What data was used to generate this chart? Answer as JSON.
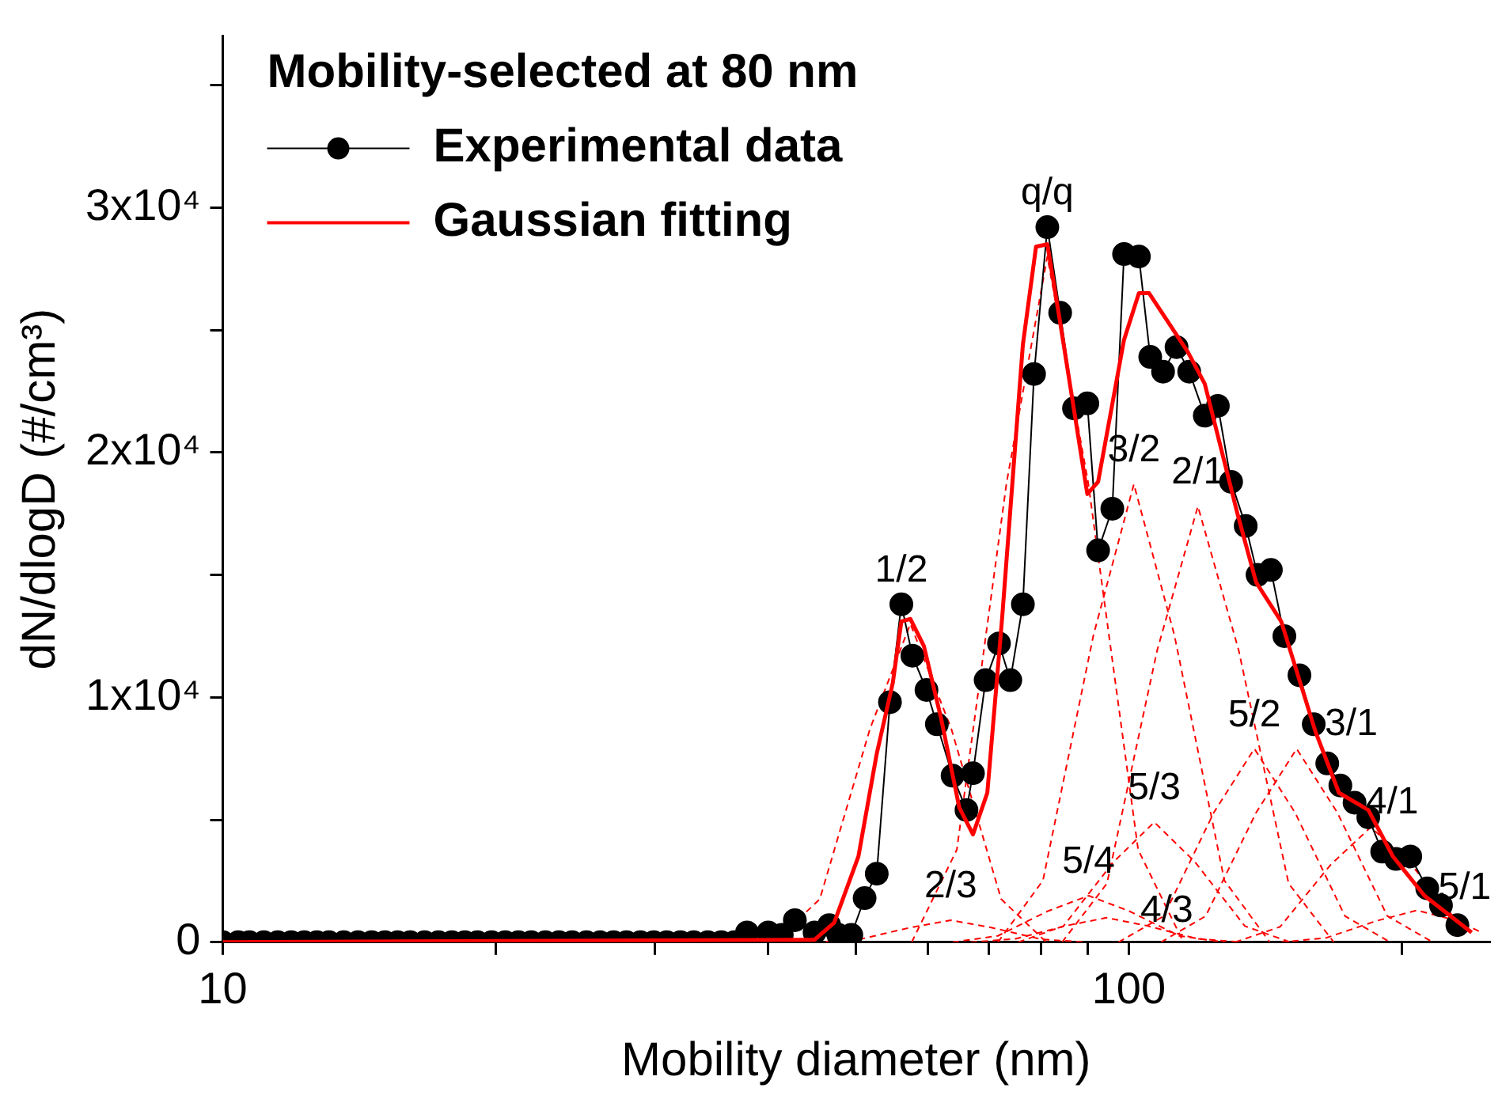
{
  "chart_data": {
    "type": "line",
    "xlabel": "Mobility diameter (nm)",
    "ylabel": "dN/dlogD (#/cm³)",
    "legend_title": "Mobility-selected at 80 nm",
    "legend": "top left",
    "grid": false,
    "log": "x",
    "xlim": [
      10,
      250
    ],
    "xticks": [
      10,
      {
        "value": 20,
        "label": null
      },
      {
        "value": 30,
        "label": null
      },
      {
        "value": 40,
        "label": null
      },
      {
        "value": 50,
        "label": null
      },
      {
        "value": 60,
        "label": null
      },
      {
        "value": 70,
        "label": null
      },
      {
        "value": 80,
        "label": null
      },
      {
        "value": 90,
        "label": null
      },
      100,
      {
        "value": 200,
        "label": null
      }
    ],
    "ylim": [
      0,
      37000
    ],
    "yticks": [
      0,
      {
        "value": 5000,
        "label": null
      },
      {
        "value": 10000,
        "label": "1x10⁴"
      },
      {
        "value": 15000,
        "label": null
      },
      {
        "value": 20000,
        "label": "2x10⁴"
      },
      {
        "value": 25000,
        "label": null
      },
      {
        "value": 30000,
        "label": "3x10⁴"
      },
      {
        "value": 35000,
        "label": null
      }
    ],
    "series": [
      {
        "name": "Experimental data",
        "type": "line",
        "color": "#000000",
        "marker": "circle",
        "line_style": "solid",
        "x": [
          10.0,
          10.4,
          10.7,
          11.1,
          11.5,
          11.9,
          12.3,
          12.7,
          13.1,
          13.6,
          14.1,
          14.6,
          15.1,
          15.6,
          16.1,
          16.7,
          17.3,
          17.9,
          18.5,
          19.1,
          19.8,
          20.5,
          21.2,
          21.9,
          22.7,
          23.5,
          24.3,
          25.2,
          26.1,
          27.0,
          27.9,
          28.9,
          29.9,
          30.9,
          32.0,
          33.1,
          34.3,
          35.5,
          36.7,
          37.9,
          40.0,
          41.4,
          42.8,
          45.0,
          46.7,
          47.8,
          49.4,
          51.1,
          52.7,
          54.5,
          56.1,
          57.7,
          59.8,
          61.4,
          63.9,
          66.2,
          67.3,
          69.5,
          71.9,
          74.0,
          76.4,
          78.6,
          81.3,
          84.0,
          87.0,
          90.0,
          92.5,
          95.9,
          98.8,
          102.6,
          105.6,
          109.1,
          112.9,
          116.6,
          121.3,
          125.4,
          129.7,
          134.6,
          138.7,
          143.5,
          148.5,
          154.3,
          160.0,
          165.6,
          171.2,
          177.5,
          183.8,
          190.4,
          197.2,
          204.5,
          213.5,
          221.1,
          230.5
        ],
        "values": [
          0,
          0,
          0,
          0,
          0,
          0,
          0,
          0,
          0,
          0,
          0,
          0,
          0,
          0,
          0,
          0,
          0,
          0,
          0,
          0,
          0,
          0,
          0,
          0,
          0,
          0,
          0,
          0,
          0,
          0,
          0,
          0,
          0,
          0,
          0,
          0,
          0,
          0,
          0,
          400,
          400,
          300,
          900,
          400,
          700,
          300,
          300,
          1800,
          2800,
          9800,
          13800,
          11700,
          10300,
          8900,
          6800,
          5400,
          6900,
          10700,
          12200,
          10700,
          13800,
          23200,
          29200,
          25700,
          21800,
          22000,
          16000,
          17700,
          28100,
          28000,
          23900,
          23300,
          24300,
          23300,
          21500,
          21900,
          18800,
          17000,
          15000,
          15200,
          12500,
          10900,
          8900,
          7300,
          6400,
          5700,
          5100,
          3700,
          3400,
          3500,
          2200,
          1500,
          700
        ]
      },
      {
        "name": "Gaussian fitting",
        "type": "line",
        "color": "#ff0000",
        "marker": "none",
        "line_style": "solid",
        "x": [
          10,
          45.0,
          47.3,
          50.3,
          52.7,
          54.9,
          56.1,
          57.4,
          59.4,
          62.1,
          65.0,
          67.3,
          69.8,
          72.5,
          76.4,
          79.0,
          81.3,
          84.0,
          90.0,
          92.5,
          98.8,
          102.6,
          105.3,
          116.2,
          121.3,
          131.8,
          138.2,
          147.3,
          160.7,
          170.6,
          183.8,
          195.7,
          212.0,
          239.0
        ],
        "values": [
          0,
          100,
          800,
          3500,
          7700,
          10600,
          13100,
          13200,
          12100,
          9100,
          5500,
          4400,
          6100,
          13300,
          24400,
          28400,
          28500,
          25300,
          18300,
          18800,
          24600,
          26500,
          26500,
          24100,
          22800,
          17500,
          14700,
          13100,
          8600,
          6100,
          5400,
          3500,
          1900,
          400
        ]
      },
      {
        "type": "line",
        "color": "#ff0000",
        "marker": "none",
        "line_style": "dashed",
        "x": [
          40.6,
          45.6,
          51.8,
          57.4,
          63.7,
          72.3,
          81.1
        ],
        "values": [
          0,
          1760,
          8710,
          13000,
          8710,
          1760,
          0
        ]
      },
      {
        "type": "line",
        "color": "#ff0000",
        "marker": "none",
        "line_style": "dashed",
        "x": [
          45.0,
          50.5,
          57.4,
          63.6,
          70.5,
          80.1,
          89.9
        ],
        "values": [
          0,
          120,
          600,
          900,
          600,
          120,
          0
        ]
      },
      {
        "type": "line",
        "color": "#ff0000",
        "marker": "none",
        "line_style": "dashed",
        "x": [
          57.6,
          64.6,
          73.3,
          81.3,
          90.2,
          102.4,
          114.9
        ],
        "values": [
          0,
          3780,
          18760,
          28000,
          18760,
          3780,
          0
        ]
      },
      {
        "type": "line",
        "color": "#ff0000",
        "marker": "none",
        "line_style": "dashed",
        "x": [
          63.9,
          71.7,
          81.4,
          90.3,
          100.1,
          113.7,
          127.6
        ],
        "values": [
          0,
          260,
          1270,
          1900,
          1270,
          260,
          0
        ]
      },
      {
        "type": "line",
        "color": "#ff0000",
        "marker": "none",
        "line_style": "dashed",
        "x": [
          66.9,
          75.0,
          85.2,
          94.5,
          104.8,
          119.0,
          133.5
        ],
        "values": [
          0,
          140,
          670,
          1000,
          670,
          140,
          0
        ]
      },
      {
        "type": "line",
        "color": "#ff0000",
        "marker": "none",
        "line_style": "dashed",
        "x": [
          71.7,
          80.4,
          91.4,
          101.3,
          112.3,
          127.5,
          143.1
        ],
        "values": [
          0,
          2520,
          12530,
          18700,
          12530,
          2520,
          0
        ]
      },
      {
        "type": "line",
        "color": "#ff0000",
        "marker": "none",
        "line_style": "dashed",
        "x": [
          75.5,
          84.7,
          96.2,
          106.7,
          118.3,
          134.3,
          150.8
        ],
        "values": [
          0,
          660,
          3280,
          4900,
          3280,
          660,
          0
        ]
      },
      {
        "type": "line",
        "color": "#ff0000",
        "marker": "none",
        "line_style": "dashed",
        "x": [
          84.4,
          94.6,
          107.5,
          119.2,
          132.2,
          150.1,
          168.4
        ],
        "values": [
          0,
          2400,
          11930,
          17800,
          11930,
          2400,
          0
        ]
      },
      {
        "type": "line",
        "color": "#ff0000",
        "marker": "none",
        "line_style": "dashed",
        "x": [
          97.4,
          109.3,
          124.1,
          137.6,
          152.6,
          173.2,
          194.4
        ],
        "values": [
          0,
          1070,
          5290,
          7900,
          5290,
          1070,
          0
        ]
      },
      {
        "type": "line",
        "color": "#ff0000",
        "marker": "none",
        "line_style": "dashed",
        "x": [
          108.5,
          121.6,
          138.2,
          153.2,
          169.9,
          192.9,
          216.5
        ],
        "values": [
          0,
          1070,
          5290,
          7900,
          5290,
          1070,
          0
        ]
      },
      {
        "type": "line",
        "color": "#ff0000",
        "marker": "none",
        "line_style": "dashed",
        "x": [
          131.0,
          146.9,
          166.9,
          185.0,
          205.2,
          232.9
        ],
        "values": [
          0,
          630,
          3150,
          4700,
          3150,
          630
        ]
      },
      {
        "type": "line",
        "color": "#ff0000",
        "marker": "none",
        "line_style": "dashed",
        "x": [
          147.3,
          165.2,
          187.6,
          208.0,
          230.7,
          245.0
        ],
        "values": [
          0,
          180,
          870,
          1300,
          870,
          400
        ]
      }
    ],
    "annotations": [
      {
        "text": "1/2",
        "x": 56.1,
        "y": 13800
      },
      {
        "text": "q/q",
        "x": 81.3,
        "y": 29200
      },
      {
        "text": "3/2",
        "x": 101.3,
        "y": 18700
      },
      {
        "text": "2/1",
        "x": 119.2,
        "y": 17800
      },
      {
        "text": "2/3",
        "x": 63.6,
        "y": 900
      },
      {
        "text": "5/4",
        "x": 90.3,
        "y": 1900
      },
      {
        "text": "4/3",
        "x": 100.1,
        "y": 1270
      },
      {
        "text": "5/3",
        "x": 106.7,
        "y": 4900
      },
      {
        "text": "5/2",
        "x": 137.6,
        "y": 7900
      },
      {
        "text": "3/1",
        "x": 160.0,
        "y": 8900
      },
      {
        "text": "4/1",
        "x": 177.5,
        "y": 5700
      },
      {
        "text": "5/1",
        "x": 213.5,
        "y": 2200
      }
    ]
  }
}
